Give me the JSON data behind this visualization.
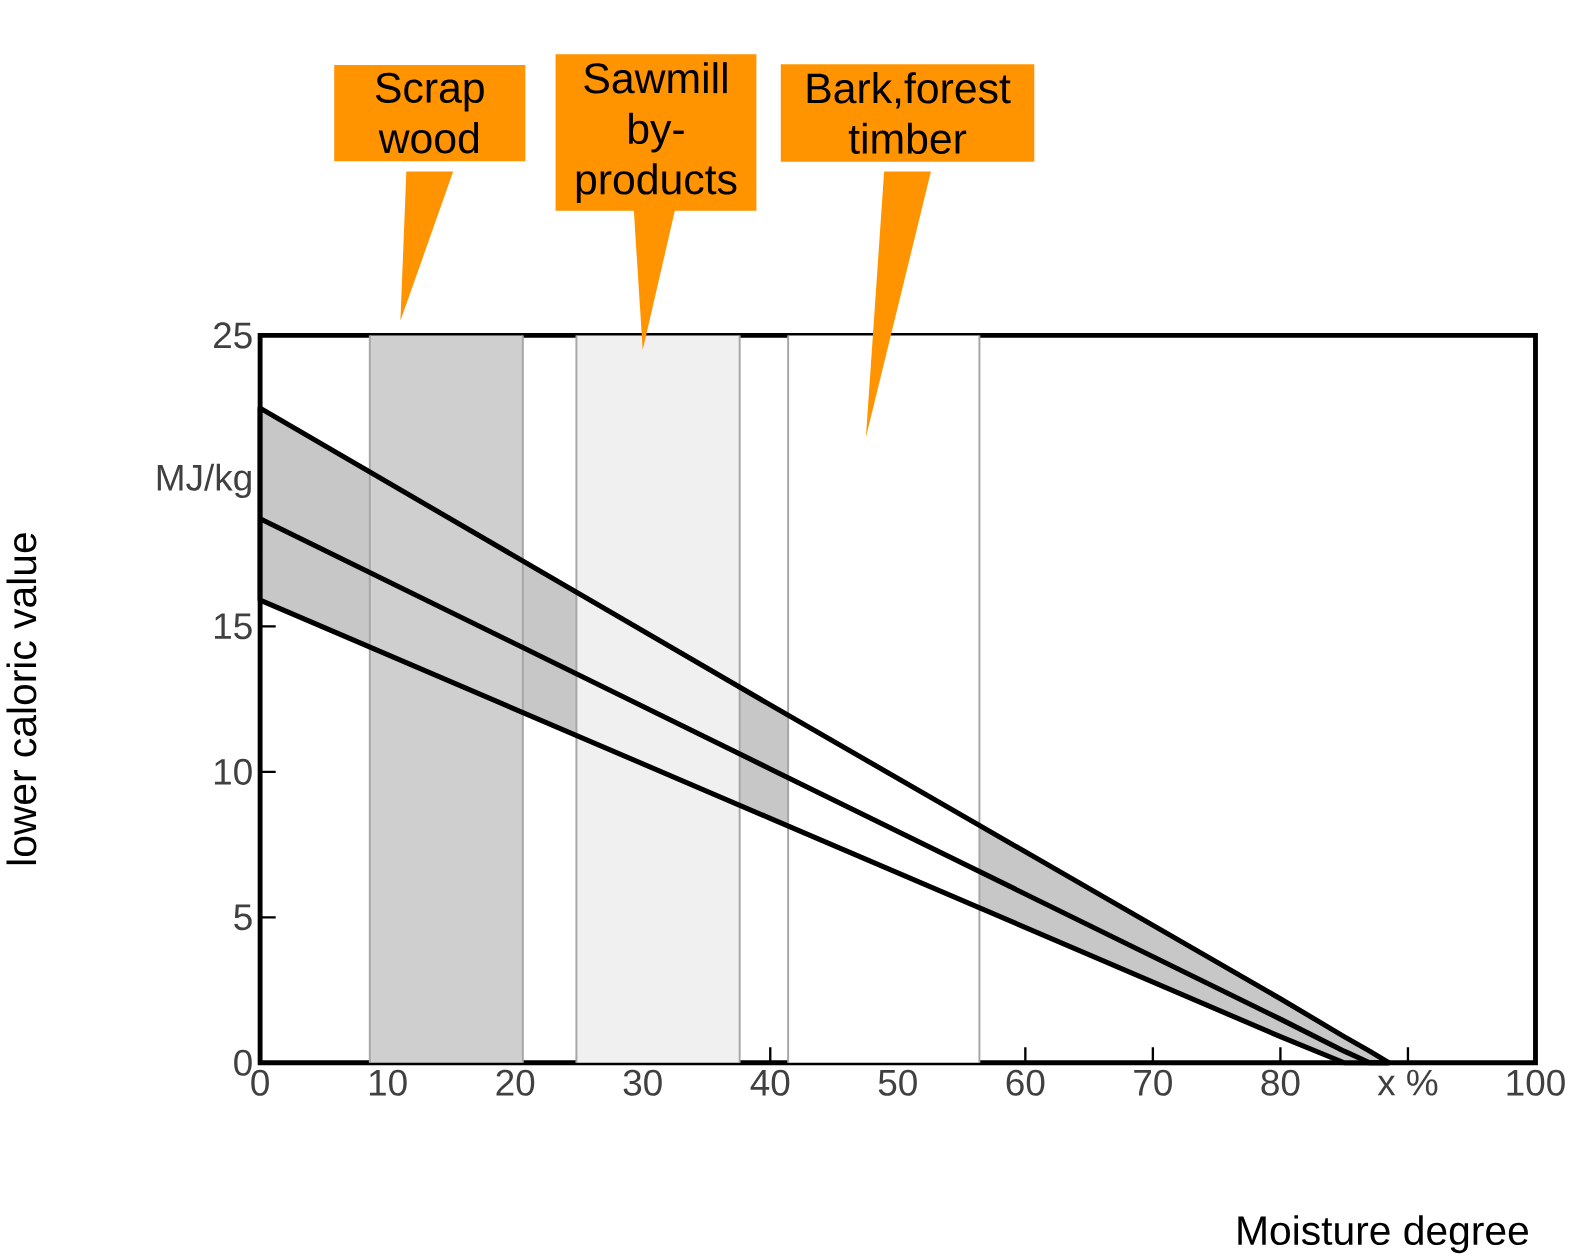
{
  "chart_data": {
    "type": "line",
    "xlabel": "Moisture degree",
    "ylabel": "lower caloric value",
    "xlim": [
      0,
      100
    ],
    "ylim": [
      0,
      25
    ],
    "xticks": [
      0,
      10,
      20,
      30,
      40,
      50,
      60,
      70,
      80,
      {
        "value": 90,
        "label": "x %"
      },
      100
    ],
    "yticks": [
      0,
      5,
      10,
      15,
      {
        "value": 20,
        "label": "MJ/kg"
      },
      25
    ],
    "grid": false,
    "marker": "none",
    "line_style": "solid",
    "series": [
      {
        "color": "#000000",
        "x": [
          0,
          40,
          80,
          85,
          87,
          88.5
        ],
        "values": [
          18.7,
          10.1,
          1.5,
          0.4,
          0,
          0
        ],
        "lower": [
          15.9,
          8.4,
          0.9,
          0,
          0,
          0
        ],
        "upper": [
          22.5,
          12.3,
          2.2,
          0.9,
          0.4,
          0
        ]
      }
    ],
    "bands": [
      {
        "axis": "x",
        "from": 8.6,
        "to": 20.6,
        "label": "Scrap wood",
        "color": "#cfcfcf"
      },
      {
        "axis": "x",
        "from": 24.8,
        "to": 37.6,
        "label": "Sawmill by-products",
        "color": "#f0f0f0"
      },
      {
        "axis": "x",
        "from": 41.4,
        "to": 56.4,
        "label": "Bark,forest timber",
        "color": "#ffffff"
      }
    ]
  }
}
